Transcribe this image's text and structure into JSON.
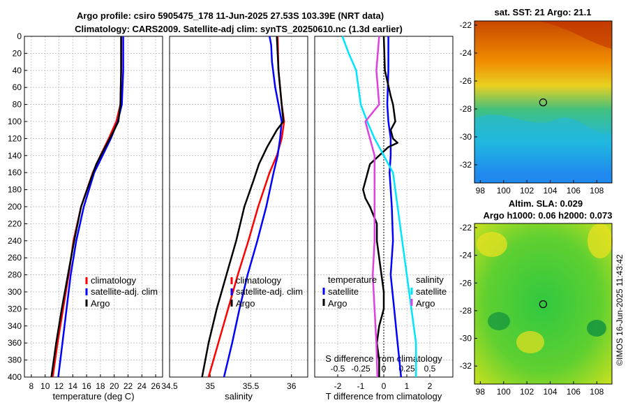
{
  "title": {
    "line1": "Argo profile: csiro 5905475_178 11-Jun-2025 27.53S 103.39E (NRT data)",
    "line2": "Climatology: CARS2009. Satellite-adj clim: synTS_20250610.nc (1.3d earlier)"
  },
  "colors": {
    "climatology": "#ff0000",
    "satellite": "#0000ff",
    "argo": "#000000",
    "salinity_sat": "#00e5ff",
    "salinity_argo": "#e040e0"
  },
  "chart_data": [
    {
      "type": "line",
      "name": "temperature-profile",
      "xlabel": "temperature (deg C)",
      "xlim": [
        7,
        27
      ],
      "xticks": [
        "8",
        "10",
        "12",
        "14",
        "16",
        "18",
        "20",
        "22",
        "24",
        "26"
      ],
      "ylim": [
        0,
        400
      ],
      "yticks": [
        "0",
        "20",
        "40",
        "60",
        "80",
        "100",
        "120",
        "140",
        "160",
        "180",
        "200",
        "220",
        "240",
        "260",
        "280",
        "300",
        "320",
        "340",
        "360",
        "380",
        "400"
      ],
      "legend": [
        "climatology",
        "satellite-adj. clim",
        "Argo"
      ],
      "series": [
        {
          "name": "climatology",
          "color": "#ff0000",
          "depth": [
            0,
            40,
            80,
            100,
            120,
            140,
            160,
            200,
            240,
            280,
            320,
            360,
            400
          ],
          "value": [
            21.0,
            21.0,
            20.9,
            20.3,
            19.2,
            18.0,
            16.9,
            15.2,
            14.1,
            13.4,
            12.6,
            11.8,
            11.1
          ]
        },
        {
          "name": "satellite-adj. clim",
          "color": "#0000ff",
          "depth": [
            0,
            40,
            80,
            100,
            120,
            140,
            160,
            200,
            240,
            280,
            320,
            360,
            400
          ],
          "value": [
            21.3,
            21.3,
            21.1,
            20.5,
            19.5,
            18.3,
            17.1,
            15.6,
            14.5,
            13.7,
            13.1,
            12.5,
            11.9
          ]
        },
        {
          "name": "Argo",
          "color": "#000000",
          "depth": [
            0,
            40,
            80,
            100,
            110,
            130,
            150,
            170,
            200,
            240,
            280,
            320,
            360,
            400
          ],
          "value": [
            21.0,
            21.0,
            20.9,
            20.6,
            20.0,
            18.7,
            17.4,
            16.5,
            15.2,
            14.2,
            13.3,
            12.4,
            11.6,
            10.9
          ]
        }
      ]
    },
    {
      "type": "line",
      "name": "salinity-profile",
      "xlabel": "salinity",
      "xlim": [
        34.5,
        36.2
      ],
      "xticks": [
        "34.5",
        "35",
        "35.5",
        "36"
      ],
      "ylim": [
        0,
        400
      ],
      "legend": [
        "climatology",
        "satellite-adj. clim",
        "Argo"
      ],
      "series": [
        {
          "name": "climatology",
          "color": "#ff0000",
          "depth": [
            0,
            40,
            80,
            100,
            120,
            140,
            160,
            200,
            240,
            280,
            320,
            360,
            400
          ],
          "value": [
            35.83,
            35.84,
            35.88,
            35.91,
            35.88,
            35.82,
            35.73,
            35.59,
            35.47,
            35.34,
            35.22,
            35.1,
            34.98
          ]
        },
        {
          "name": "satellite-adj. clim",
          "color": "#0000ff",
          "depth": [
            0,
            10,
            30,
            60,
            80,
            100,
            120,
            140,
            160,
            200,
            240,
            280,
            320,
            360,
            400
          ],
          "value": [
            35.73,
            35.75,
            35.76,
            35.8,
            35.84,
            35.88,
            35.86,
            35.83,
            35.78,
            35.69,
            35.58,
            35.46,
            35.36,
            35.27,
            35.17
          ]
        },
        {
          "name": "Argo",
          "color": "#000000",
          "depth": [
            0,
            40,
            80,
            100,
            110,
            130,
            150,
            170,
            200,
            240,
            280,
            320,
            360,
            400
          ],
          "value": [
            35.82,
            35.84,
            35.88,
            35.9,
            35.82,
            35.7,
            35.6,
            35.53,
            35.42,
            35.32,
            35.2,
            35.08,
            34.98,
            34.9
          ]
        }
      ]
    },
    {
      "type": "line",
      "name": "difference-profile",
      "xlabel": "T difference from climatology",
      "xlabel_top": "S difference from climatology",
      "xlim": [
        -3,
        3
      ],
      "xticks": [
        "-2",
        "-1",
        "0",
        "1",
        "2"
      ],
      "xticks_top": [
        "-0.5",
        "-0.25",
        "0",
        "0.25",
        "0.5"
      ],
      "ylim": [
        0,
        400
      ],
      "legend_temperature": {
        "title": "temperature",
        "items": [
          "satellite",
          "Argo"
        ]
      },
      "legend_salinity": {
        "title": "salinity",
        "items": [
          "satellite",
          "Argo"
        ]
      },
      "series": [
        {
          "name": "T satellite",
          "color": "#0000ff",
          "depth": [
            0,
            40,
            80,
            100,
            120,
            140,
            160,
            200,
            240,
            280,
            320,
            360,
            400
          ],
          "value": [
            0.2,
            0.2,
            0.15,
            0.2,
            0.3,
            0.3,
            0.25,
            0.35,
            0.4,
            0.3,
            0.45,
            0.6,
            0.75
          ]
        },
        {
          "name": "T Argo",
          "color": "#000000",
          "depth": [
            0,
            40,
            70,
            80,
            90,
            100,
            110,
            120,
            125,
            130,
            150,
            170,
            180,
            190,
            200,
            220,
            240,
            260,
            280,
            300,
            320,
            340,
            360,
            380,
            400
          ],
          "value": [
            0,
            0.05,
            0.3,
            0.4,
            0.45,
            0.5,
            0.3,
            0.4,
            0.6,
            0.2,
            -0.6,
            -0.8,
            -0.9,
            -0.8,
            -0.6,
            -0.3,
            -0.3,
            -0.2,
            -0.1,
            0,
            0,
            -0.2,
            -0.3,
            -0.2,
            -0.2
          ]
        },
        {
          "name": "S satellite",
          "color": "#00e5ff",
          "depth": [
            0,
            20,
            40,
            80,
            100,
            120,
            140,
            160,
            200,
            240,
            280,
            320,
            360,
            400
          ],
          "value": [
            -0.45,
            -0.38,
            -0.3,
            -0.25,
            -0.18,
            -0.1,
            0,
            0.1,
            0.15,
            0.2,
            0.25,
            0.3,
            0.35,
            0.35
          ]
        },
        {
          "name": "S Argo",
          "color": "#e040e0",
          "depth": [
            0,
            40,
            80,
            100,
            120,
            140,
            160,
            200,
            240,
            280,
            320,
            360,
            400
          ],
          "value": [
            -0.05,
            -0.08,
            -0.05,
            -0.2,
            -0.15,
            -0.1,
            -0.1,
            -0.1,
            -0.1,
            -0.12,
            -0.1,
            -0.08,
            -0.07
          ]
        }
      ]
    },
    {
      "type": "heatmap",
      "name": "sst-map",
      "title": "sat. SST: 21 Argo: 21.1",
      "xticks": [
        "98",
        "100",
        "102",
        "104",
        "106",
        "108"
      ],
      "yticks": [
        "-22",
        "-24",
        "-26",
        "-28",
        "-30",
        "-32"
      ],
      "xlim": [
        97.5,
        109.3
      ],
      "ylim": [
        -33.3,
        -21.7
      ],
      "marker": [
        103.39,
        -27.53
      ]
    },
    {
      "type": "heatmap",
      "name": "sla-map",
      "title_line1": "Altim. SLA: 0.029",
      "title_line2": "Argo h1000: 0.06 h2000: 0.073",
      "xticks": [
        "98",
        "100",
        "102",
        "104",
        "106",
        "108"
      ],
      "yticks": [
        "-22",
        "-24",
        "-26",
        "-28",
        "-30",
        "-32"
      ],
      "xlim": [
        97.5,
        109.3
      ],
      "ylim": [
        -33.3,
        -21.7
      ],
      "marker": [
        103.39,
        -27.53
      ]
    }
  ],
  "credit": "©IMOS 16-Jun-2025 11:43:42"
}
